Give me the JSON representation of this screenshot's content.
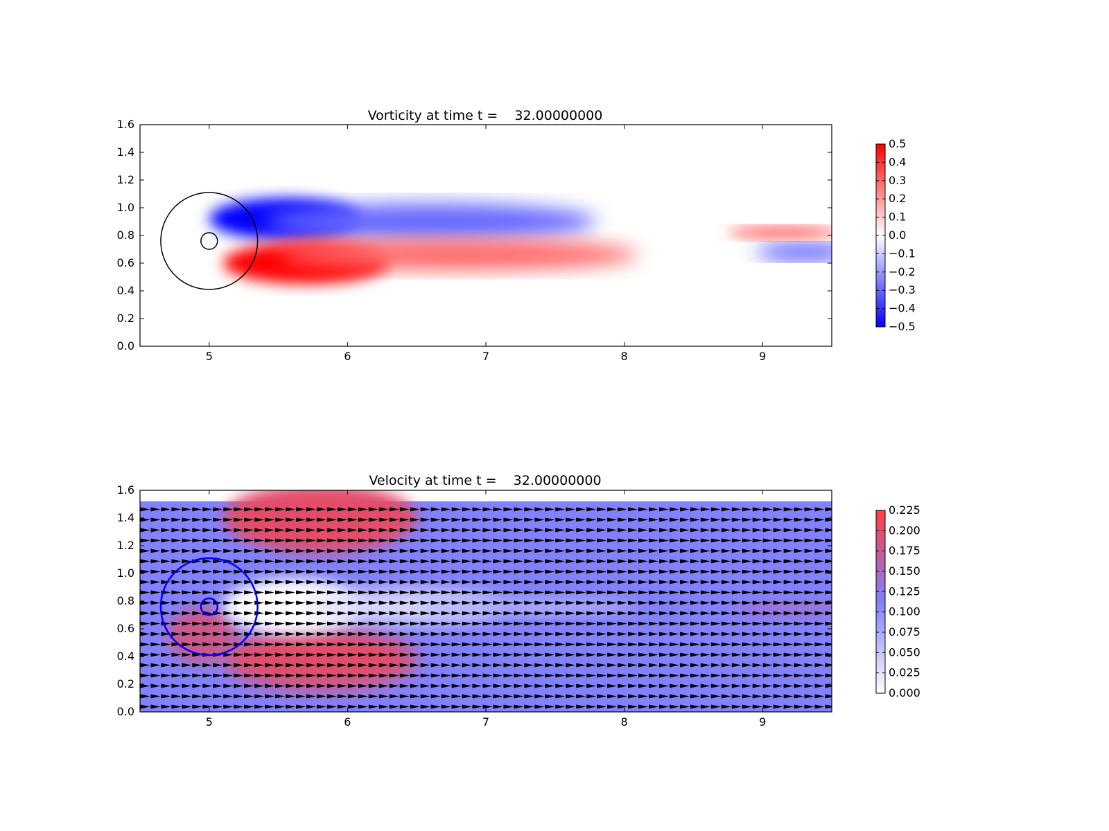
{
  "chart_data": [
    {
      "type": "heatmap",
      "title": "Vorticity at time t =    32.00000000",
      "xlabel": "",
      "ylabel": "",
      "xlim": [
        4.5,
        9.5
      ],
      "ylim": [
        0.0,
        1.6
      ],
      "x_ticks": [
        "5",
        "6",
        "7",
        "8",
        "9"
      ],
      "y_ticks": [
        "0.0",
        "0.2",
        "0.4",
        "0.6",
        "0.8",
        "1.0",
        "1.2",
        "1.4",
        "1.6"
      ],
      "colormap": [
        "#0000ff",
        "#ffffff",
        "#ff0000"
      ],
      "colorbar": {
        "range": [
          -0.5,
          0.5
        ],
        "ticks": [
          "−0.5",
          "−0.4",
          "−0.3",
          "−0.2",
          "−0.1",
          "0.0",
          "0.1",
          "0.2",
          "0.3",
          "0.4",
          "0.5"
        ]
      },
      "circles": [
        {
          "center": [
            5.0,
            0.76
          ],
          "radius": 0.35,
          "color": "#000000"
        },
        {
          "center": [
            5.0,
            0.76
          ],
          "radius": 0.06,
          "color": "#000000"
        }
      ],
      "regions": [
        {
          "sign": "negative",
          "peak_value": -0.5,
          "center": [
            5.55,
            0.92
          ],
          "extent": [
            0.55,
            0.15
          ]
        },
        {
          "sign": "negative",
          "peak_value": -0.3,
          "center": [
            6.6,
            0.9
          ],
          "extent": [
            1.2,
            0.13
          ]
        },
        {
          "sign": "positive",
          "peak_value": 0.5,
          "center": [
            5.7,
            0.6
          ],
          "extent": [
            0.6,
            0.15
          ]
        },
        {
          "sign": "positive",
          "peak_value": 0.3,
          "center": [
            6.8,
            0.66
          ],
          "extent": [
            1.3,
            0.11
          ]
        },
        {
          "sign": "positive",
          "peak_value": 0.35,
          "center": [
            9.15,
            0.82
          ],
          "extent": [
            0.4,
            0.04
          ]
        },
        {
          "sign": "negative",
          "peak_value": -0.4,
          "center": [
            9.3,
            0.68
          ],
          "extent": [
            0.35,
            0.05
          ]
        }
      ]
    },
    {
      "type": "heatmap",
      "title": "Velocity at time t =    32.00000000",
      "xlabel": "",
      "ylabel": "",
      "xlim": [
        4.5,
        9.5
      ],
      "ylim": [
        0.0,
        1.6
      ],
      "x_ticks": [
        "5",
        "6",
        "7",
        "8",
        "9"
      ],
      "y_ticks": [
        "0.0",
        "0.2",
        "0.4",
        "0.6",
        "0.8",
        "1.0",
        "1.2",
        "1.4",
        "1.6"
      ],
      "data_ylim": [
        0.0,
        1.52
      ],
      "colormap": [
        "#ffffff",
        "#7f7fff",
        "#ff4040"
      ],
      "colorbar": {
        "range": [
          0.0,
          0.225
        ],
        "ticks": [
          "0.000",
          "0.025",
          "0.050",
          "0.075",
          "0.100",
          "0.125",
          "0.150",
          "0.175",
          "0.200",
          "0.225"
        ]
      },
      "background_speed": 0.11,
      "quiver": {
        "dx": 0.075,
        "dy": 0.075,
        "direction": "+x"
      },
      "circles": [
        {
          "center": [
            5.0,
            0.76
          ],
          "radius": 0.35,
          "color": "#0000ee"
        },
        {
          "center": [
            5.0,
            0.76
          ],
          "radius": 0.06,
          "color": "#0000ee"
        }
      ],
      "regions": [
        {
          "kind": "high",
          "peak_value": 0.2,
          "center": [
            5.8,
            1.4
          ],
          "extent": [
            0.7,
            0.25
          ]
        },
        {
          "kind": "high",
          "peak_value": 0.2,
          "center": [
            5.8,
            0.38
          ],
          "extent": [
            0.7,
            0.22
          ]
        },
        {
          "kind": "high",
          "peak_value": 0.18,
          "center": [
            4.95,
            0.55
          ],
          "extent": [
            0.25,
            0.2
          ]
        },
        {
          "kind": "high",
          "peak_value": 0.15,
          "center": [
            9.2,
            0.74
          ],
          "extent": [
            0.4,
            0.05
          ]
        },
        {
          "kind": "low",
          "peak_value": 0.0,
          "center": [
            5.6,
            0.76
          ],
          "extent": [
            0.5,
            0.2
          ]
        },
        {
          "kind": "low",
          "peak_value": 0.03,
          "center": [
            6.4,
            0.76
          ],
          "extent": [
            0.7,
            0.12
          ]
        },
        {
          "kind": "low",
          "peak_value": 0.07,
          "center": [
            7.3,
            0.76
          ],
          "extent": [
            0.8,
            0.06
          ]
        }
      ]
    }
  ]
}
